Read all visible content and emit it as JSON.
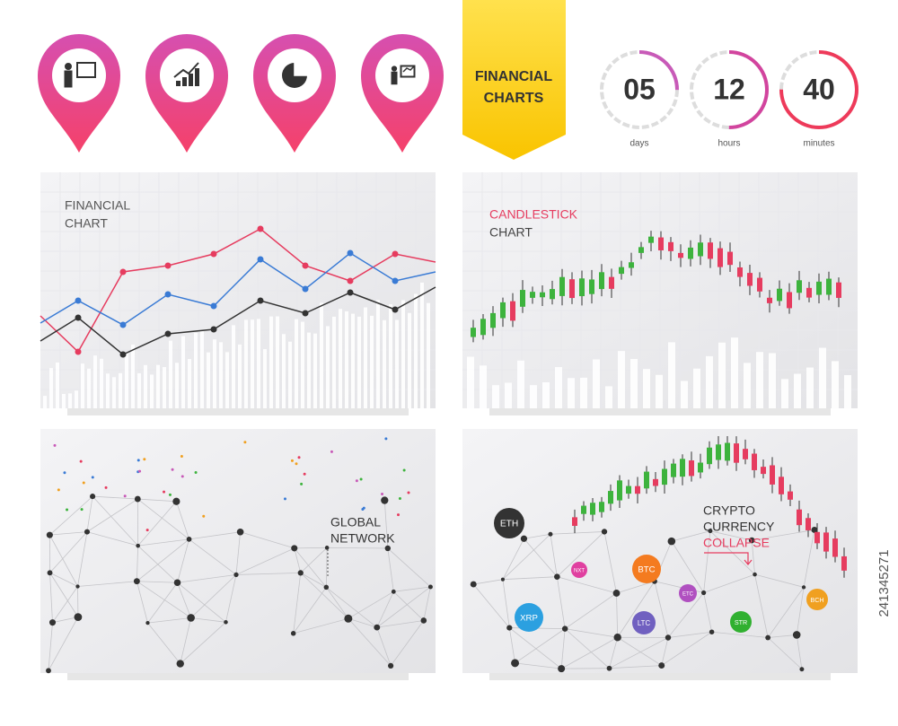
{
  "banner": {
    "lines": [
      "FINANCIAL",
      "CHARTS"
    ]
  },
  "countdown": [
    {
      "value": "05",
      "unit": "days"
    },
    {
      "value": "12",
      "unit": "hours"
    },
    {
      "value": "40",
      "unit": "minutes"
    }
  ],
  "panels": {
    "financial": [
      "FINANCIAL",
      "CHART"
    ],
    "candlestick": [
      "CANDLESTICK",
      "CHART"
    ],
    "network": [
      "GLOBAL",
      "NETWORK"
    ],
    "crypto": [
      "CRYPTO",
      "CURRENCY",
      "COLLAPSE"
    ]
  },
  "coins": [
    {
      "label": "ETH",
      "color": "#333333"
    },
    {
      "label": "BTC",
      "color": "#f47b20"
    },
    {
      "label": "NXT",
      "color": "#e040a0"
    },
    {
      "label": "ETC",
      "color": "#b050c0"
    },
    {
      "label": "XRP",
      "color": "#2ba0e0"
    },
    {
      "label": "LTC",
      "color": "#7060c0"
    },
    {
      "label": "STR",
      "color": "#30b030"
    },
    {
      "label": "BCH",
      "color": "#f0a020"
    }
  ],
  "stock_id": "241345271"
}
